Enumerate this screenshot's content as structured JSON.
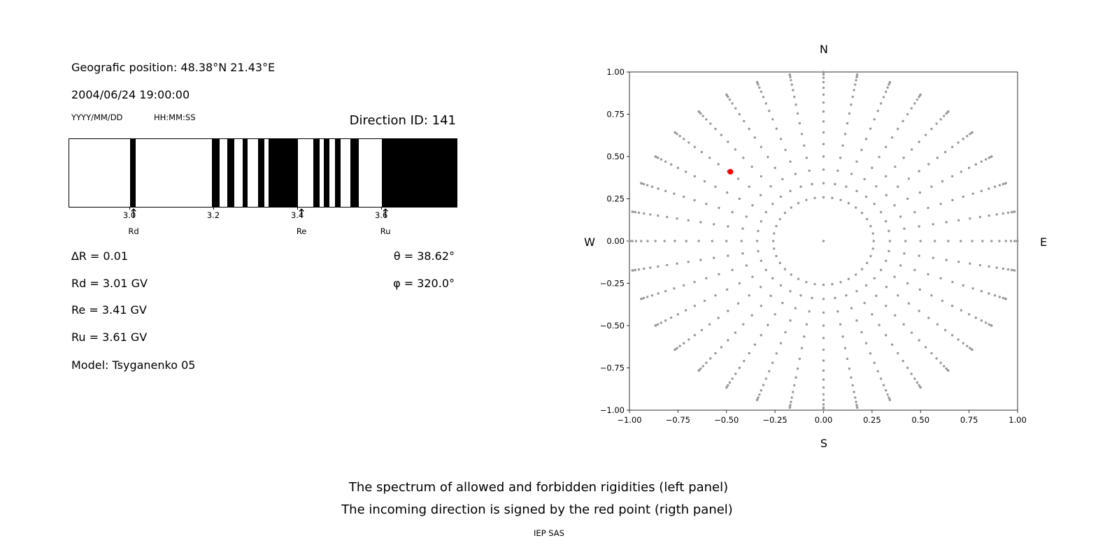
{
  "left_panel": {
    "geo_position": "Geografic position: 48.38°N 21.43°E",
    "datetime": "2004/06/24 19:00:00",
    "date_format": "YYYY/MM/DD",
    "time_format": "HH:MM:SS",
    "direction_id": "Direction ID: 141",
    "delta_r": "∆R = 0.01",
    "rd": "Rd = 3.01 GV",
    "re": "Re = 3.41 GV",
    "ru": "Ru = 3.61 GV",
    "model": "Model: Tsyganenko 05",
    "theta": "θ = 38.62°",
    "phi": "φ = 320.0°"
  },
  "captions": {
    "line1": "The spectrum of allowed and forbidden rigidities (left panel)",
    "line2": "The incoming direction is signed by the red point (rigth panel)",
    "footer": "IEP SAS"
  },
  "chart_data": [
    {
      "type": "bar",
      "subtype": "barcode-rigidity-spectrum",
      "xlim": [
        2.855,
        3.778
      ],
      "xticks": [
        {
          "value": 3.0,
          "label": "3.0"
        },
        {
          "value": 3.2,
          "label": "3.2"
        },
        {
          "value": 3.4,
          "label": "3.4"
        },
        {
          "value": 3.6,
          "label": "3.6"
        }
      ],
      "allowed_color": "#000000",
      "forbidden_color": "#ffffff",
      "allowed_bands_gv": [
        [
          3.0,
          3.013
        ],
        [
          3.195,
          3.213
        ],
        [
          3.232,
          3.248
        ],
        [
          3.268,
          3.28
        ],
        [
          3.305,
          3.32
        ],
        [
          3.33,
          3.4
        ],
        [
          3.437,
          3.452
        ],
        [
          3.462,
          3.475
        ],
        [
          3.488,
          3.502
        ],
        [
          3.525,
          3.545
        ],
        [
          3.6,
          3.778
        ]
      ],
      "marker_symbol": "↑",
      "markers": [
        {
          "label": "Rd",
          "value": 3.01
        },
        {
          "label": "Re",
          "value": 3.41
        },
        {
          "label": "Ru",
          "value": 3.61
        }
      ]
    },
    {
      "type": "scatter",
      "xlim": [
        -1.0,
        1.0
      ],
      "ylim": [
        -1.0,
        1.0
      ],
      "xticks": [
        {
          "value": -1.0,
          "label": "−1.00"
        },
        {
          "value": -0.75,
          "label": "−0.75"
        },
        {
          "value": -0.5,
          "label": "−0.50"
        },
        {
          "value": -0.25,
          "label": "−0.25"
        },
        {
          "value": 0.0,
          "label": "0.00"
        },
        {
          "value": 0.25,
          "label": "0.25"
        },
        {
          "value": 0.5,
          "label": "0.50"
        },
        {
          "value": 0.75,
          "label": "0.75"
        },
        {
          "value": 1.0,
          "label": "1.00"
        }
      ],
      "yticks": [
        {
          "value": -1.0,
          "label": "−1.00"
        },
        {
          "value": -0.75,
          "label": "−0.75"
        },
        {
          "value": -0.5,
          "label": "−0.50"
        },
        {
          "value": -0.25,
          "label": "−0.25"
        },
        {
          "value": 0.0,
          "label": "0.00"
        },
        {
          "value": 0.25,
          "label": "0.25"
        },
        {
          "value": 0.5,
          "label": "0.50"
        },
        {
          "value": 0.75,
          "label": "0.75"
        },
        {
          "value": 1.0,
          "label": "1.00"
        }
      ],
      "compass_labels": {
        "top": "N",
        "bottom": "S",
        "left": "W",
        "right": "E"
      },
      "grid_points": {
        "azimuth_step_deg": 10,
        "zenith_angles_deg": [
          0,
          15,
          20,
          25,
          30,
          35,
          40,
          45,
          50,
          55,
          60,
          65,
          70,
          75,
          80,
          85,
          90
        ],
        "radius_rule": "sin(zenith)",
        "color": "#9a9a9a"
      },
      "red_point": {
        "x": -0.48,
        "y": 0.41,
        "color": "#ff0000"
      }
    }
  ]
}
